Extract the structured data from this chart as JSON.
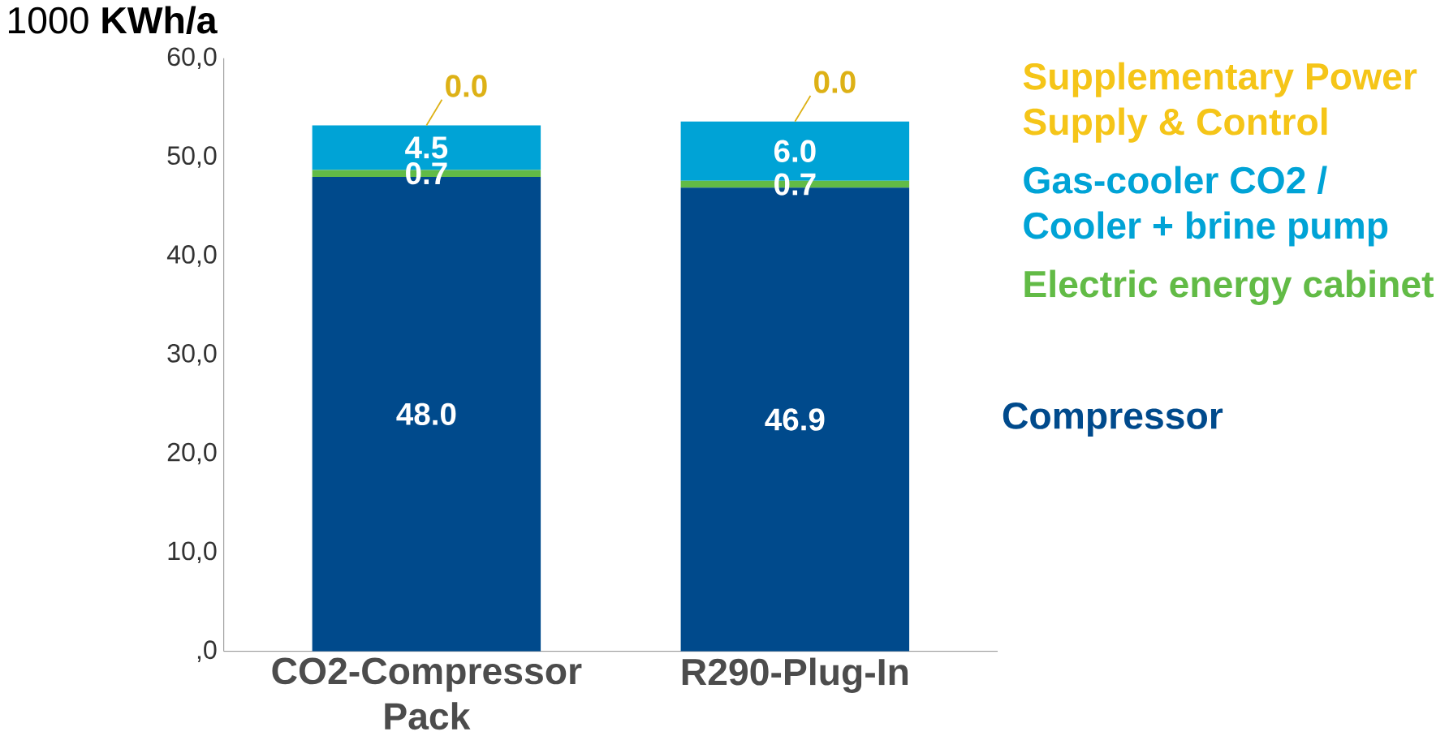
{
  "chart_data": {
    "type": "bar",
    "stacked": true,
    "ylabel": "1000 **KWh/a**",
    "categories": [
      "CO2-Compressor Pack",
      "R290-Plug-In"
    ],
    "series": [
      {
        "name": "Compressor",
        "color": "#004a8c",
        "values": [
          48.0,
          46.9
        ],
        "value_labels": [
          "48.0",
          "46.9"
        ]
      },
      {
        "name": "Electric energy cabinet",
        "color": "#62bb46",
        "values": [
          0.7,
          0.7
        ],
        "value_labels": [
          "0.7",
          "0.7"
        ]
      },
      {
        "name": "Gas-cooler CO2 / Cooler + brine pump",
        "color": "#00a3d6",
        "values": [
          4.5,
          6.0
        ],
        "value_labels": [
          "4.5",
          "6.0"
        ]
      },
      {
        "name": "Supplementary Power Supply & Control",
        "color": "#f5c518",
        "values": [
          0.0,
          0.0
        ],
        "value_labels": [
          "0.0",
          "0.0"
        ]
      }
    ],
    "ylim": [
      0,
      60
    ],
    "yticks": [
      {
        "value": 0,
        "label": ",0"
      },
      {
        "value": 10,
        "label": "10,0"
      },
      {
        "value": 20,
        "label": "20,0"
      },
      {
        "value": 30,
        "label": "30,0"
      },
      {
        "value": 40,
        "label": "40,0"
      },
      {
        "value": 50,
        "label": "50,0"
      },
      {
        "value": 60,
        "label": "60,0"
      }
    ],
    "grid": false
  }
}
